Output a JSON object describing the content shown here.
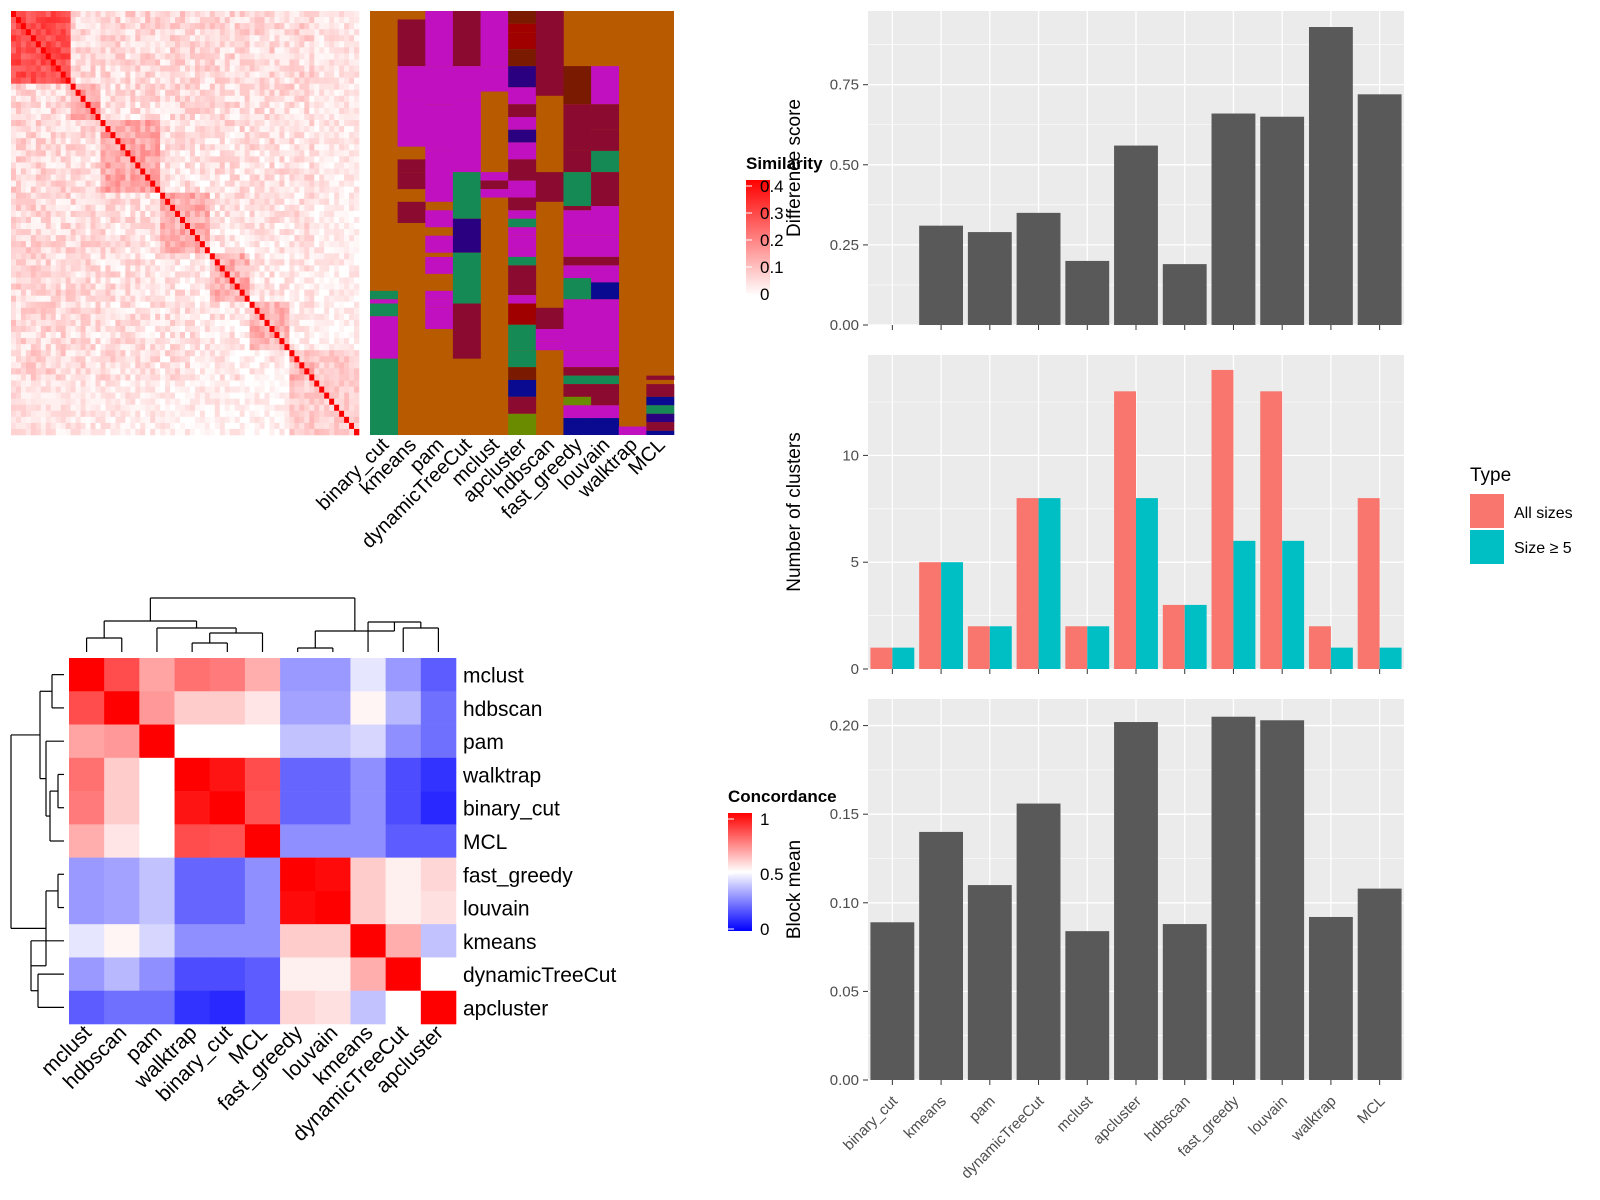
{
  "colors": {
    "panel_bg": "#EBEBEB",
    "grid": "#FFFFFF",
    "bar": "#595959",
    "all_sizes": "#F8766D",
    "size_ge5": "#00BFC4",
    "sim_high": "#FF0000",
    "sim_low": "#FFFFFF",
    "conc_high": "#FF0000",
    "conc_mid": "#FFFFFF",
    "conc_low": "#0000FF"
  },
  "legend_similarity": {
    "title": "Similarity",
    "ticks": [
      "0.4",
      "0.3",
      "0.2",
      "0.1",
      "0"
    ]
  },
  "legend_concordance": {
    "title": "Concordance",
    "ticks": [
      "1",
      "0.5",
      "0"
    ]
  },
  "legend_type": {
    "title": "Type",
    "items": [
      "All sizes",
      "Size ≥ 5"
    ]
  },
  "chart_data": [
    {
      "type": "heatmap",
      "title": "",
      "description_hidden": false,
      "rows": 70,
      "value_range": [
        0,
        0.4
      ],
      "note_values": "similarity matrix, strong diagonal, values mostly 0-0.4"
    },
    {
      "type": "heatmap",
      "title": "",
      "columns": [
        "binary_cut",
        "kmeans",
        "pam",
        "dynamicTreeCut",
        "mclust",
        "apcluster",
        "hdbscan",
        "fast_greedy",
        "louvain",
        "walktrap",
        "MCL"
      ]
    },
    {
      "type": "heatmap",
      "title": "",
      "rows": [
        "mclust",
        "hdbscan",
        "pam",
        "walktrap",
        "binary_cut",
        "MCL",
        "fast_greedy",
        "louvain",
        "kmeans",
        "dynamicTreeCut",
        "apcluster"
      ],
      "columns": [
        "mclust",
        "hdbscan",
        "pam",
        "walktrap",
        "binary_cut",
        "MCL",
        "fast_greedy",
        "louvain",
        "kmeans",
        "dynamicTreeCut",
        "apcluster"
      ],
      "values": [
        [
          1.0,
          0.85,
          0.68,
          0.78,
          0.76,
          0.66,
          0.3,
          0.3,
          0.45,
          0.3,
          0.18
        ],
        [
          0.85,
          1.0,
          0.7,
          0.6,
          0.6,
          0.55,
          0.32,
          0.32,
          0.52,
          0.36,
          0.22
        ],
        [
          0.68,
          0.7,
          1.0,
          0.5,
          0.5,
          0.5,
          0.38,
          0.38,
          0.42,
          0.28,
          0.22
        ],
        [
          0.78,
          0.6,
          0.5,
          1.0,
          0.96,
          0.85,
          0.2,
          0.2,
          0.28,
          0.15,
          0.1
        ],
        [
          0.76,
          0.6,
          0.5,
          0.96,
          1.0,
          0.84,
          0.2,
          0.2,
          0.28,
          0.15,
          0.08
        ],
        [
          0.66,
          0.55,
          0.5,
          0.85,
          0.84,
          1.0,
          0.28,
          0.28,
          0.28,
          0.18,
          0.18
        ],
        [
          0.3,
          0.32,
          0.38,
          0.2,
          0.2,
          0.28,
          1.0,
          0.98,
          0.6,
          0.53,
          0.58
        ],
        [
          0.3,
          0.32,
          0.38,
          0.2,
          0.2,
          0.28,
          0.98,
          1.0,
          0.6,
          0.53,
          0.56
        ],
        [
          0.45,
          0.52,
          0.42,
          0.28,
          0.28,
          0.28,
          0.6,
          0.6,
          1.0,
          0.66,
          0.38
        ],
        [
          0.3,
          0.36,
          0.28,
          0.15,
          0.15,
          0.18,
          0.53,
          0.53,
          0.66,
          1.0,
          0.5
        ],
        [
          0.18,
          0.22,
          0.22,
          0.1,
          0.08,
          0.18,
          0.58,
          0.56,
          0.38,
          0.5,
          1.0
        ]
      ],
      "value_range": [
        0,
        1
      ]
    },
    {
      "type": "bar",
      "title": "",
      "categories": [
        "binary_cut",
        "kmeans",
        "pam",
        "dynamicTreeCut",
        "mclust",
        "apcluster",
        "hdbscan",
        "fast_greedy",
        "louvain",
        "walktrap",
        "MCL"
      ],
      "values": [
        0.0,
        0.31,
        0.29,
        0.35,
        0.2,
        0.56,
        0.19,
        0.66,
        0.65,
        0.93,
        0.72
      ],
      "xlabel": "",
      "ylabel": "Difference score",
      "ylim": [
        0,
        0.98
      ],
      "yticks": [
        "0.00",
        "0.25",
        "0.50",
        "0.75"
      ]
    },
    {
      "type": "bar",
      "title": "",
      "categories": [
        "binary_cut",
        "kmeans",
        "pam",
        "dynamicTreeCut",
        "mclust",
        "apcluster",
        "hdbscan",
        "fast_greedy",
        "louvain",
        "walktrap",
        "MCL"
      ],
      "series": [
        {
          "name": "All sizes",
          "values": [
            1,
            5,
            2,
            8,
            2,
            13,
            3,
            14,
            13,
            2,
            8
          ]
        },
        {
          "name": "Size ≥ 5",
          "values": [
            1,
            5,
            2,
            8,
            2,
            8,
            3,
            6,
            6,
            1,
            1
          ]
        }
      ],
      "xlabel": "",
      "ylabel": "Number of clusters",
      "ylim": [
        0,
        14.7
      ],
      "yticks": [
        "0",
        "5",
        "10"
      ]
    },
    {
      "type": "bar",
      "title": "",
      "categories": [
        "binary_cut",
        "kmeans",
        "pam",
        "dynamicTreeCut",
        "mclust",
        "apcluster",
        "hdbscan",
        "fast_greedy",
        "louvain",
        "walktrap",
        "MCL"
      ],
      "values": [
        0.089,
        0.14,
        0.11,
        0.156,
        0.084,
        0.202,
        0.088,
        0.205,
        0.203,
        0.092,
        0.108
      ],
      "xlabel": "",
      "ylabel": "Block mean",
      "ylim": [
        0,
        0.215
      ],
      "yticks": [
        "0.00",
        "0.05",
        "0.10",
        "0.15",
        "0.20"
      ]
    }
  ]
}
